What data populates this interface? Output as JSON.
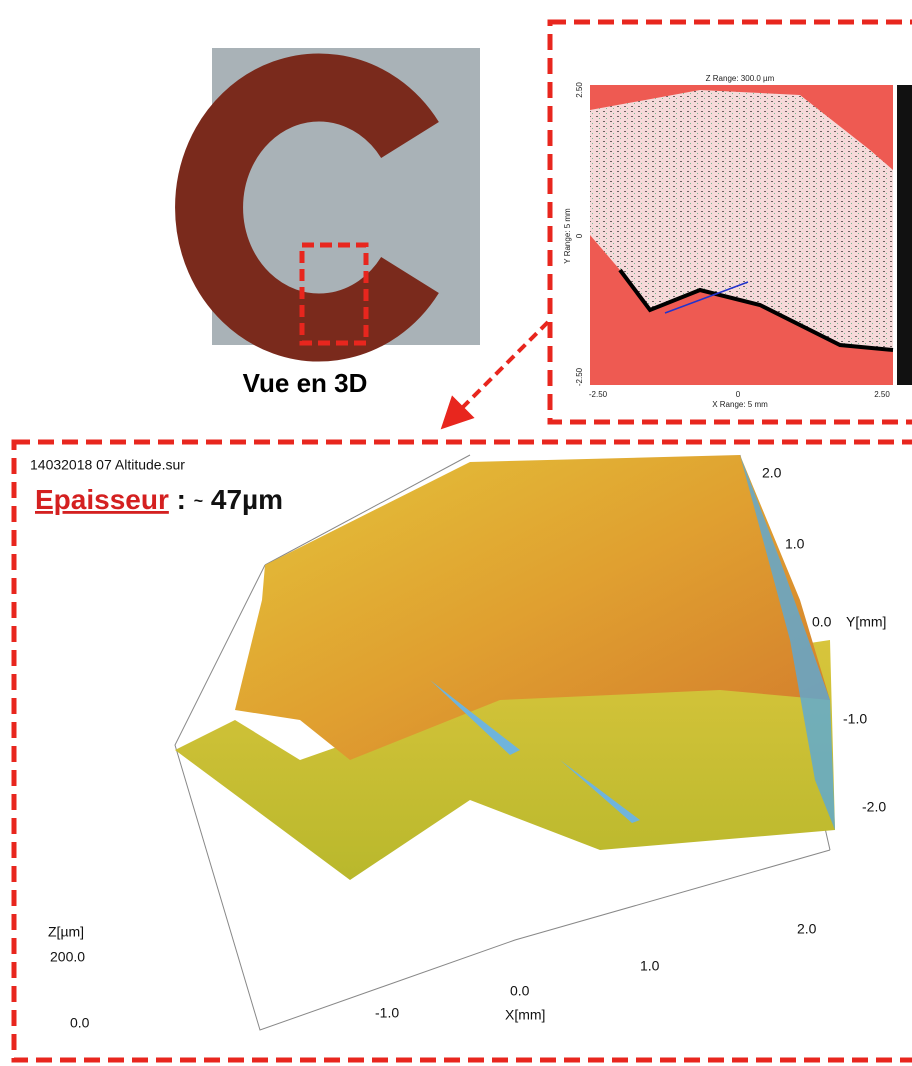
{
  "photo": {
    "caption": "Vue en 3D"
  },
  "map2d": {
    "title": "Z Range:  300.0 µm",
    "y_label": "Y Range: 5 mm",
    "x_label": "X Range: 5 mm",
    "y_ticks": [
      "2.50",
      "0",
      "-2.50"
    ],
    "x_ticks": [
      "-2.50",
      "0",
      "2.50"
    ]
  },
  "view3d": {
    "file_name": "14032018 07 Altitude.sur",
    "thickness_label": "Epaisseur",
    "separator": ":",
    "approx": "~",
    "thickness_value": "47µm",
    "y_ticks": [
      "2.0",
      "1.0",
      "0.0",
      "-1.0",
      "-2.0"
    ],
    "y_label": "Y[mm]",
    "z_label": "Z[µm]",
    "z_ticks": [
      "200.0",
      "0.0"
    ],
    "x_ticks": [
      "-1.0",
      "0.0",
      "1.0",
      "2.0"
    ],
    "x_label": "X[mm]"
  }
}
